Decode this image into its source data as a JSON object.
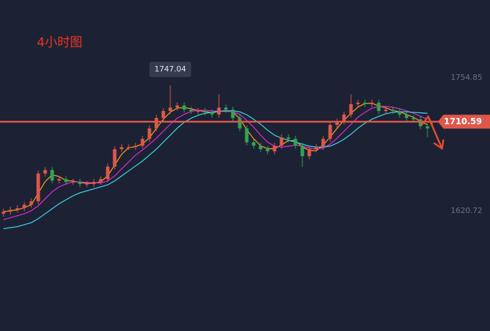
{
  "chart_data": {
    "type": "candlestick",
    "title": "4小时图",
    "ylim": [
      1500,
      1833
    ],
    "yticks": [
      1754.85,
      1620.72
    ],
    "price_line": 1710.59,
    "peak_index": 24,
    "up_color": "#e0574a",
    "down_color": "#2fa652",
    "open": [
      1618,
      1620.0,
      1622,
      1623.5,
      1627,
      1630.5,
      1658.4,
      1661.9,
      1651.4,
      1652.8,
      1650.0,
      1650.0,
      1647.9,
      1647.9,
      1650.0,
      1652.8,
      1665.4,
      1682.9,
      1685.0,
      1685.0,
      1686.4,
      1693.3,
      1703.8,
      1714.3,
      1721.3,
      1724.8,
      1726.9,
      1722.7,
      1721.3,
      1721.3,
      1719.9,
      1717.8,
      1724.8,
      1722.7,
      1714.3,
      1703.8,
      1689.8,
      1686.4,
      1682.9,
      1680.8,
      1686.4,
      1694.7,
      1693.3,
      1686.4,
      1675.9,
      1682.9,
      1685.0,
      1693.3,
      1707.3,
      1710.8,
      1717.8,
      1728.3,
      1729.7,
      1728.3,
      1729.7,
      1721.3,
      1722.7,
      1721.3,
      1717.8,
      1714.3,
      1712.9,
      1705.9
    ],
    "high": [
      1623,
      1625,
      1626.5,
      1630,
      1633.5,
      1661.4,
      1664.9,
      1664.9,
      1655.8,
      1655.8,
      1653,
      1653,
      1650.9,
      1653,
      1655.8,
      1668.4,
      1685.9,
      1688,
      1688,
      1689.4,
      1696.3,
      1706.8,
      1717.3,
      1724.3,
      1747.04,
      1729.9,
      1729.9,
      1725.7,
      1724.3,
      1724.3,
      1722.9,
      1738,
      1727.8,
      1725.7,
      1717.3,
      1706.8,
      1692.8,
      1689.4,
      1685.9,
      1689.4,
      1697.7,
      1697.7,
      1696.3,
      1689.4,
      1685.9,
      1688,
      1696.3,
      1710.3,
      1713.8,
      1720.8,
      1738,
      1732.7,
      1732.7,
      1732.7,
      1732.7,
      1725.7,
      1725.7,
      1724.3,
      1720.8,
      1717.3,
      1715.9,
      1708.9
    ],
    "low": [
      1615,
      1617,
      1619,
      1620.5,
      1624,
      1627.5,
      1655.4,
      1648.4,
      1648.4,
      1647,
      1647,
      1644.9,
      1644.9,
      1644.9,
      1647,
      1649.8,
      1662.4,
      1679.9,
      1682,
      1682,
      1683.4,
      1690.3,
      1700.8,
      1711.3,
      1718.3,
      1721.8,
      1719.7,
      1718.3,
      1718.3,
      1716.9,
      1714.8,
      1714.8,
      1719.7,
      1711.3,
      1700.8,
      1686.8,
      1683.4,
      1679.9,
      1677.8,
      1677.8,
      1683.4,
      1690.3,
      1683.4,
      1665,
      1672.9,
      1679.9,
      1682,
      1690.3,
      1704.3,
      1707.8,
      1714.8,
      1725.3,
      1725.3,
      1725.3,
      1718.3,
      1718.3,
      1718.3,
      1714.8,
      1711.3,
      1709.9,
      1702.9,
      1695
    ],
    "close": [
      1620.0,
      1622,
      1623.5,
      1627,
      1630.5,
      1658.4,
      1661.9,
      1651.4,
      1652.8,
      1650.0,
      1650.0,
      1647.9,
      1647.9,
      1650.0,
      1652.8,
      1665.4,
      1682.9,
      1685.0,
      1685.0,
      1686.4,
      1693.3,
      1703.8,
      1714.3,
      1721.3,
      1724.8,
      1726.9,
      1722.7,
      1721.3,
      1721.3,
      1719.9,
      1717.8,
      1724.8,
      1722.7,
      1714.3,
      1703.8,
      1689.8,
      1686.4,
      1682.9,
      1680.8,
      1686.4,
      1694.7,
      1693.3,
      1686.4,
      1675.9,
      1682.9,
      1685.0,
      1693.3,
      1707.3,
      1710.8,
      1717.8,
      1728.3,
      1729.7,
      1728.3,
      1729.7,
      1721.3,
      1722.7,
      1721.3,
      1717.8,
      1714.3,
      1712.9,
      1705.9,
      1703.8
    ],
    "lines": [
      {
        "color": "#f39c1f",
        "values": [
          1620,
          1621,
          1621.8,
          1624.2,
          1627,
          1638.6,
          1650.3,
          1657.2,
          1655.4,
          1651.4,
          1650.9,
          1649.3,
          1648.6,
          1648.6,
          1650.2,
          1656.1,
          1667,
          1677.8,
          1684.3,
          1685.5,
          1688.2,
          1694.5,
          1703.8,
          1713.1,
          1720.1,
          1724.3,
          1724.8,
          1723.6,
          1721.8,
          1720.8,
          1719.7,
          1720.8,
          1721.8,
          1720.6,
          1713.6,
          1702.6,
          1693.3,
          1686.4,
          1683.4,
          1683.4,
          1687.3,
          1691.5,
          1691.5,
          1685.2,
          1681.7,
          1681.3,
          1687.1,
          1695.2,
          1703.8,
          1712,
          1719,
          1725.3,
          1728.8,
          1729.2,
          1726.4,
          1724.6,
          1721.8,
          1720.6,
          1717.8,
          1715,
          1711,
          1707.5
        ]
      },
      {
        "color": "#d62ad6",
        "values": [
          1612,
          1614,
          1616,
          1618,
          1621,
          1626,
          1633,
          1640,
          1645,
          1648,
          1650,
          1650,
          1649.5,
          1649,
          1649,
          1651,
          1656,
          1663,
          1670,
          1677,
          1682,
          1688,
          1694,
          1701,
          1708,
          1714,
          1718,
          1721,
          1722,
          1722,
          1721.5,
          1721,
          1721,
          1720.5,
          1718,
          1712,
          1705,
          1697,
          1690,
          1686,
          1685,
          1686,
          1687,
          1686,
          1684,
          1683,
          1684,
          1688,
          1694,
          1701,
          1708,
          1715,
          1720,
          1724,
          1726,
          1726,
          1725,
          1723.5,
          1721.5,
          1719,
          1716,
          1713
        ]
      },
      {
        "color": "#3fd0e0",
        "values": [
          1603,
          1604,
          1605,
          1607,
          1609,
          1613,
          1618,
          1623,
          1628,
          1632,
          1636,
          1639,
          1641,
          1643,
          1645,
          1647,
          1651,
          1656,
          1661,
          1666,
          1671,
          1677,
          1683,
          1690,
          1697,
          1704,
          1710,
          1714,
          1717,
          1719,
          1720,
          1721,
          1721.5,
          1721.5,
          1720.5,
          1717.5,
          1713,
          1708,
          1702,
          1697,
          1694,
          1692,
          1690,
          1688,
          1686,
          1685,
          1685,
          1686,
          1689,
          1693,
          1698,
          1704,
          1709,
          1713,
          1716,
          1718.5,
          1720,
          1720.5,
          1720.5,
          1720,
          1719.5,
          1719
        ]
      }
    ]
  }
}
